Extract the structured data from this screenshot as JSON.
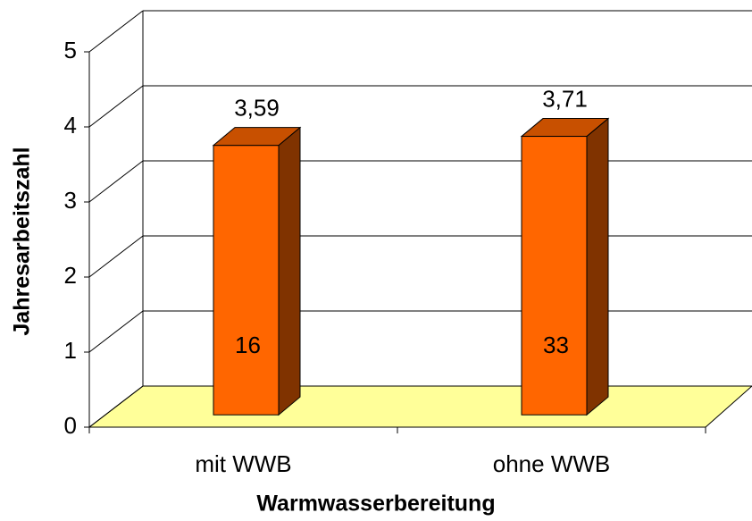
{
  "chart_data": {
    "type": "bar3d",
    "categories": [
      "mit WWB",
      "ohne WWB"
    ],
    "values": [
      3.59,
      3.71
    ],
    "value_labels": [
      "3,59",
      "3,71"
    ],
    "counts": [
      16,
      33
    ],
    "xlabel": "Warmwasserbereitung",
    "ylabel": "Jahresarbeitszahl",
    "ylim": [
      0,
      5
    ],
    "yticks": [
      0,
      1,
      2,
      3,
      4,
      5
    ],
    "grid": true,
    "color": "#ff6600",
    "side_color": "#803300",
    "top_color": "#c85000",
    "floor_color": "#ffff99"
  }
}
